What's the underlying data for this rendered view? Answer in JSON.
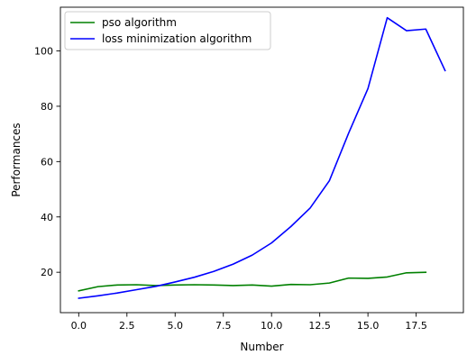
{
  "chart_data": {
    "type": "line",
    "title": "",
    "xlabel": "Number",
    "ylabel": "Performances",
    "xlim": [
      -0.95,
      19.95
    ],
    "ylim": [
      5.4,
      115.8
    ],
    "xticks": [
      0.0,
      2.5,
      5.0,
      7.5,
      10.0,
      12.5,
      15.0,
      17.5
    ],
    "xtick_labels": [
      "0.0",
      "2.5",
      "5.0",
      "7.5",
      "10.0",
      "12.5",
      "15.0",
      "17.5"
    ],
    "yticks": [
      20,
      40,
      60,
      80,
      100
    ],
    "ytick_labels": [
      "20",
      "40",
      "60",
      "80",
      "100"
    ],
    "grid": false,
    "legend_position": "top-left",
    "series": [
      {
        "name": "pso algorithm",
        "color": "#008000",
        "x": [
          0,
          1,
          2,
          3,
          4,
          5,
          6,
          7,
          8,
          9,
          10,
          11,
          12,
          13,
          14,
          15,
          16,
          17,
          18
        ],
        "values": [
          13.3,
          14.8,
          15.4,
          15.5,
          15.2,
          15.4,
          15.5,
          15.4,
          15.2,
          15.4,
          15.0,
          15.6,
          15.5,
          16.1,
          17.9,
          17.8,
          18.3,
          19.8,
          20.0
        ]
      },
      {
        "name": "loss minimization algorithm",
        "color": "#0000ff",
        "x": [
          0,
          1,
          2,
          3,
          4,
          5,
          6,
          7,
          8,
          9,
          10,
          11,
          12,
          13,
          14,
          15,
          16,
          17,
          18,
          19
        ],
        "values": [
          10.6,
          11.5,
          12.5,
          13.7,
          14.9,
          16.5,
          18.2,
          20.3,
          22.9,
          26.2,
          30.6,
          36.5,
          43.2,
          53.1,
          70.3,
          86.4,
          112.0,
          107.3,
          107.9,
          92.9
        ]
      }
    ]
  }
}
